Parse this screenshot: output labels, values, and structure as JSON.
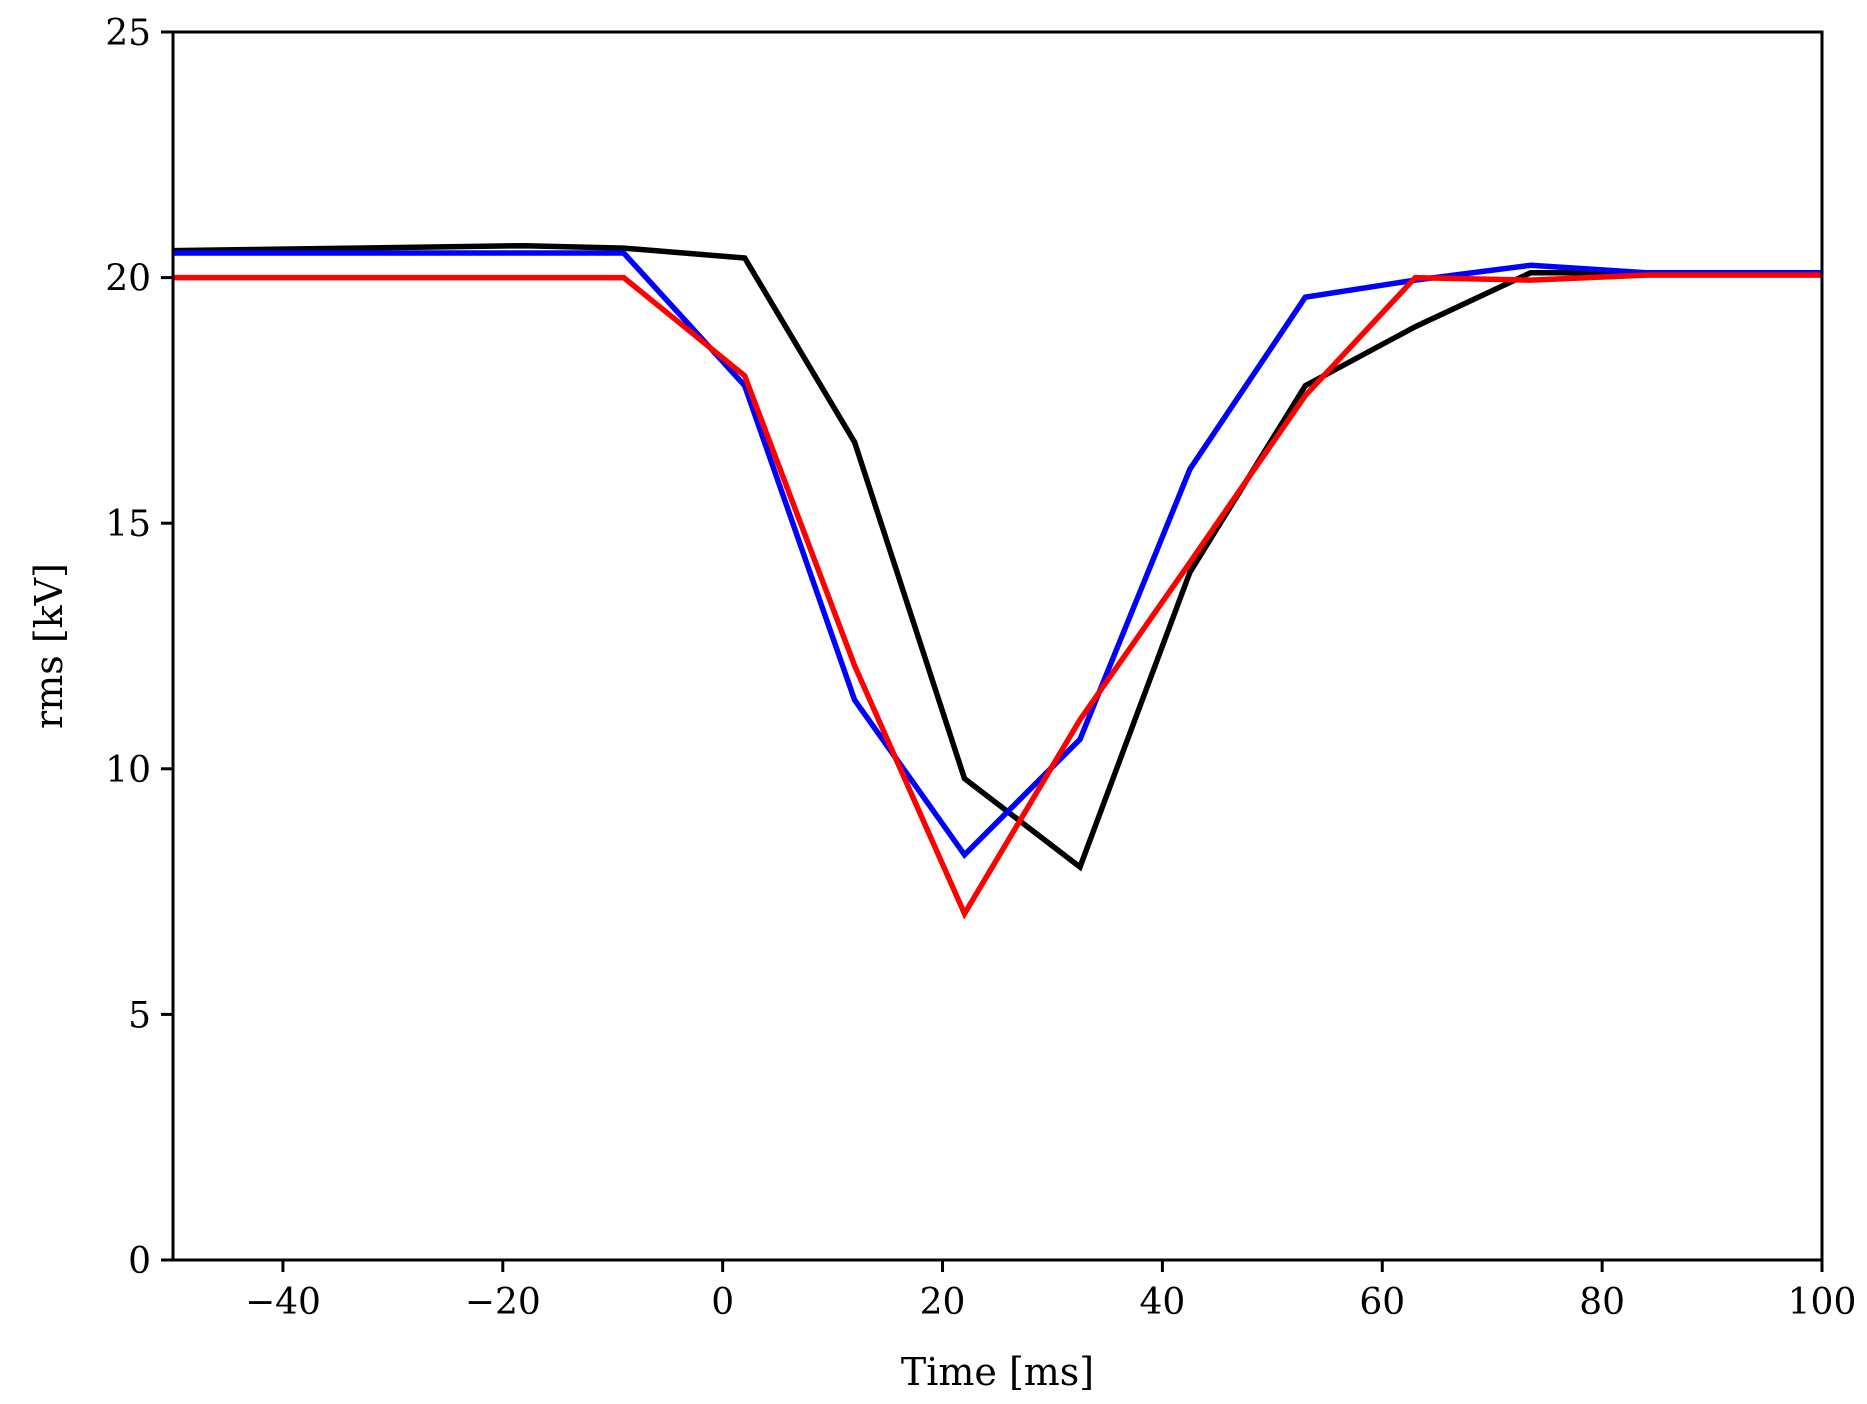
{
  "chart_data": {
    "type": "line",
    "title": "",
    "xlabel": "Time [ms]",
    "ylabel": "rms [kV]",
    "xlim": [
      -50,
      100
    ],
    "ylim": [
      0,
      25
    ],
    "xticks": [
      -40,
      -20,
      0,
      20,
      40,
      60,
      80,
      100
    ],
    "xtick_labels": [
      "−40",
      "−20",
      "0",
      "20",
      "40",
      "60",
      "80",
      "100"
    ],
    "yticks": [
      0,
      5,
      10,
      15,
      20,
      25
    ],
    "ytick_labels": [
      "0",
      "5",
      "10",
      "15",
      "20",
      "25"
    ],
    "grid": false,
    "series": [
      {
        "name": "black",
        "color": "#000000",
        "x": [
          -50,
          -18,
          -9,
          2,
          12,
          22,
          32.5,
          42.5,
          53,
          63,
          73.5,
          84,
          100
        ],
        "y": [
          20.55,
          20.65,
          20.6,
          20.4,
          16.65,
          9.8,
          8.0,
          14.0,
          17.8,
          19.0,
          20.1,
          20.1,
          20.1
        ]
      },
      {
        "name": "blue",
        "color": "#0000ff",
        "x": [
          -50,
          -9,
          2,
          12,
          22,
          32.5,
          42.5,
          53,
          63,
          73.5,
          84,
          100
        ],
        "y": [
          20.5,
          20.5,
          17.8,
          11.4,
          8.25,
          10.6,
          16.1,
          19.6,
          19.95,
          20.25,
          20.1,
          20.1
        ]
      },
      {
        "name": "red",
        "color": "#ff0000",
        "x": [
          -50,
          -9,
          2,
          12,
          22,
          32.5,
          42.5,
          53,
          63,
          73.5,
          84,
          100
        ],
        "y": [
          20.0,
          20.0,
          18.0,
          12.1,
          7.05,
          11.0,
          14.2,
          17.6,
          20.0,
          19.95,
          20.05,
          20.05
        ]
      }
    ]
  }
}
